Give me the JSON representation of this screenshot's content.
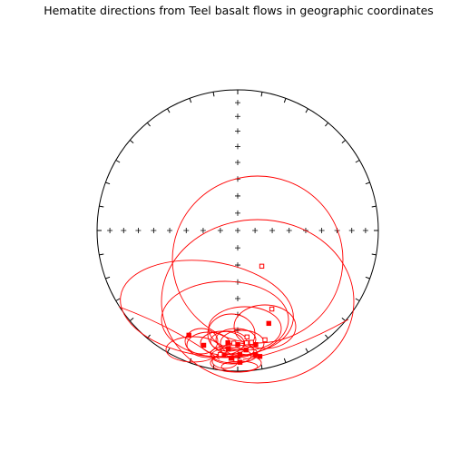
{
  "chart_data": {
    "type": "scatter",
    "projection": "equal-area stereonet",
    "title": "Hematite directions from Teel basalt flows in geographic coordinates",
    "grid": false,
    "color": "#ff0000",
    "frame_color": "#000000",
    "points": [
      {
        "dec": 180.0,
        "inc": 20,
        "fill": "filled"
      },
      {
        "dec": 172.0,
        "inc": 12,
        "fill": "filled"
      },
      {
        "dec": 170.0,
        "inc": 10,
        "fill": "filled"
      },
      {
        "dec": 183.0,
        "inc": 10,
        "fill": "filled"
      },
      {
        "dec": 184.5,
        "inc": 17,
        "fill": "filled"
      },
      {
        "dec": 186.5,
        "inc": 12,
        "fill": "filled"
      },
      {
        "dec": 196.5,
        "inc": 16,
        "fill": "filled"
      },
      {
        "dec": 185.0,
        "inc": 21,
        "fill": "filled"
      },
      {
        "dec": 205.0,
        "inc": 19,
        "fill": "filled"
      },
      {
        "dec": 179.0,
        "inc": 13,
        "fill": "filled"
      },
      {
        "dec": 176.0,
        "inc": 16,
        "fill": "filled"
      },
      {
        "dec": 180.8,
        "inc": 9,
        "fill": "open"
      },
      {
        "dec": 182.8,
        "inc": 10,
        "fill": "filled"
      },
      {
        "dec": 179.0,
        "inc": 7,
        "fill": "filled"
      },
      {
        "dec": 156.5,
        "inc": 39,
        "fill": "open"
      },
      {
        "dec": 146.0,
        "inc": 65,
        "fill": "open"
      },
      {
        "dec": 161.5,
        "inc": 31,
        "fill": "filled"
      },
      {
        "dec": 175.5,
        "inc": 21,
        "fill": "open"
      },
      {
        "dec": 182.0,
        "inc": 21,
        "fill": "open"
      },
      {
        "dec": 188.0,
        "inc": 12,
        "fill": "open"
      },
      {
        "dec": 173.0,
        "inc": 21,
        "fill": "open"
      },
      {
        "dec": 171.0,
        "inc": 19,
        "fill": "filled"
      },
      {
        "dec": 166.0,
        "inc": 21,
        "fill": "open"
      },
      {
        "dec": 175.0,
        "inc": 25,
        "fill": "open"
      }
    ]
  }
}
